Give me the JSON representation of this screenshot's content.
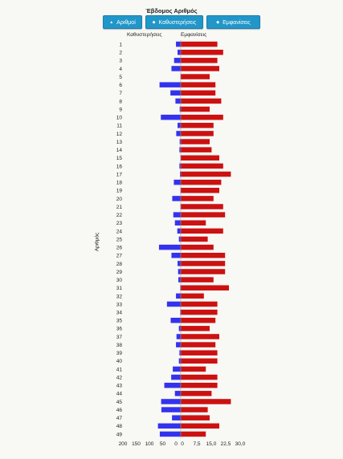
{
  "title": "Έβδομος Αριθμός",
  "buttons": {
    "numbers": {
      "label": "Αριθμοί",
      "icon": "sort-up-icon"
    },
    "delays": {
      "label": "Καθυστερήσεις",
      "icon": "sort-icon"
    },
    "appearances": {
      "label": "Εμφανίσεις",
      "icon": "sort-icon"
    }
  },
  "colors": {
    "delays_bar": "#3333ee",
    "appearances_bar": "#cc1111",
    "button": "#2196c9"
  },
  "chart_data": {
    "type": "bar",
    "orientation": "horizontal",
    "ylabel": "Αριθμός",
    "categories": [
      "1",
      "2",
      "3",
      "4",
      "5",
      "6",
      "7",
      "8",
      "9",
      "10",
      "11",
      "12",
      "13",
      "14",
      "15",
      "16",
      "17",
      "18",
      "19",
      "20",
      "21",
      "22",
      "23",
      "24",
      "25",
      "26",
      "27",
      "28",
      "29",
      "30",
      "31",
      "32",
      "33",
      "34",
      "35",
      "36",
      "37",
      "38",
      "39",
      "40",
      "41",
      "42",
      "43",
      "44",
      "45",
      "46",
      "47",
      "48",
      "49"
    ],
    "series": [
      {
        "name": "Καθυστερήσεις",
        "xlim": [
          0,
          200
        ],
        "reversed": true,
        "ticks": [
          "200",
          "150",
          "100",
          "50",
          "0"
        ],
        "values": [
          18,
          12,
          25,
          35,
          1,
          80,
          39,
          20,
          4,
          75,
          12,
          17,
          4,
          5,
          1,
          5,
          3,
          26,
          1,
          32,
          1,
          28,
          22,
          13,
          7,
          82,
          35,
          12,
          10,
          9,
          2,
          18,
          52,
          2,
          38,
          7,
          16,
          18,
          5,
          7,
          30,
          36,
          62,
          22,
          74,
          73,
          33,
          86,
          79
        ]
      },
      {
        "name": "Εμφανίσεις",
        "xlim": [
          0,
          30
        ],
        "ticks": [
          "0",
          "7,5",
          "15,0",
          "22,5",
          "30,0"
        ],
        "values": [
          19,
          22,
          19,
          20,
          15,
          18,
          18,
          21,
          15,
          22,
          17,
          17,
          15,
          16,
          20,
          22,
          26,
          21,
          20,
          17,
          22,
          23,
          13,
          22,
          14,
          17,
          23,
          23,
          23,
          17,
          25,
          12,
          19,
          19,
          18,
          15,
          20,
          18,
          19,
          19,
          13,
          19,
          19,
          16,
          26,
          14,
          15,
          20,
          13
        ]
      }
    ]
  }
}
